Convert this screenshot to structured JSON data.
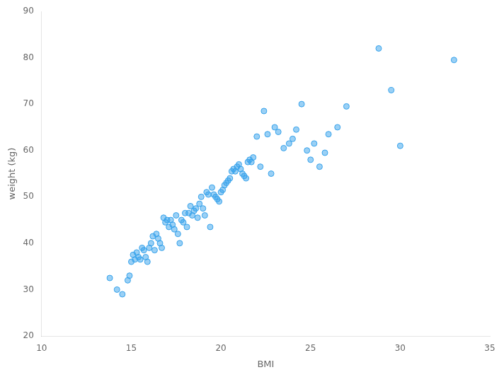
{
  "chart_data": {
    "type": "scatter",
    "xlabel": "BMI",
    "ylabel": "weight (kg)",
    "xlim": [
      10,
      35
    ],
    "ylim": [
      20,
      90
    ],
    "xticks": [
      10,
      15,
      20,
      25,
      30,
      35
    ],
    "yticks": [
      20,
      30,
      40,
      50,
      60,
      70,
      80,
      90
    ],
    "grid": false,
    "x": [
      13.8,
      14.2,
      14.5,
      14.8,
      14.9,
      15.0,
      15.1,
      15.2,
      15.3,
      15.4,
      15.5,
      15.6,
      15.7,
      15.8,
      15.9,
      16.0,
      16.1,
      16.2,
      16.3,
      16.4,
      16.5,
      16.6,
      16.7,
      16.8,
      16.9,
      17.0,
      17.1,
      17.2,
      17.3,
      17.4,
      17.5,
      17.6,
      17.7,
      17.8,
      17.9,
      18.0,
      18.1,
      18.2,
      18.3,
      18.4,
      18.5,
      18.6,
      18.7,
      18.8,
      18.9,
      19.0,
      19.1,
      19.2,
      19.3,
      19.4,
      19.5,
      19.6,
      19.7,
      19.8,
      19.9,
      20.0,
      20.1,
      20.2,
      20.3,
      20.4,
      20.5,
      20.6,
      20.7,
      20.8,
      20.9,
      21.0,
      21.1,
      21.2,
      21.3,
      21.4,
      21.5,
      21.6,
      21.7,
      21.8,
      22.0,
      22.2,
      22.4,
      22.6,
      22.8,
      23.0,
      23.2,
      23.5,
      23.8,
      24.0,
      24.2,
      24.5,
      24.8,
      25.0,
      25.2,
      25.5,
      25.8,
      26.0,
      26.5,
      27.0,
      28.8,
      29.5,
      30.0,
      33.0
    ],
    "values": [
      32.5,
      30.0,
      29.0,
      32.0,
      33.0,
      36.0,
      37.5,
      36.5,
      38.0,
      37.0,
      36.5,
      39.0,
      38.5,
      37.0,
      36.0,
      39.0,
      40.0,
      41.5,
      38.5,
      42.0,
      41.0,
      40.0,
      39.0,
      45.5,
      44.5,
      45.0,
      43.5,
      45.0,
      44.0,
      43.0,
      46.0,
      42.0,
      40.0,
      45.0,
      44.5,
      46.5,
      43.5,
      46.5,
      48.0,
      46.0,
      47.0,
      47.5,
      45.5,
      48.5,
      50.0,
      47.5,
      46.0,
      51.0,
      50.5,
      43.5,
      52.0,
      50.5,
      50.0,
      49.5,
      49.0,
      51.0,
      51.5,
      52.5,
      53.0,
      53.5,
      54.0,
      55.5,
      56.0,
      55.5,
      56.5,
      57.0,
      56.0,
      55.0,
      54.5,
      54.0,
      57.5,
      58.0,
      57.5,
      58.5,
      63.0,
      56.5,
      68.5,
      63.5,
      55.0,
      65.0,
      64.0,
      60.5,
      61.5,
      62.5,
      64.5,
      70.0,
      60.0,
      58.0,
      61.5,
      56.5,
      59.5,
      63.5,
      65.0,
      69.5,
      82.0,
      73.0,
      61.0,
      79.5
    ]
  }
}
